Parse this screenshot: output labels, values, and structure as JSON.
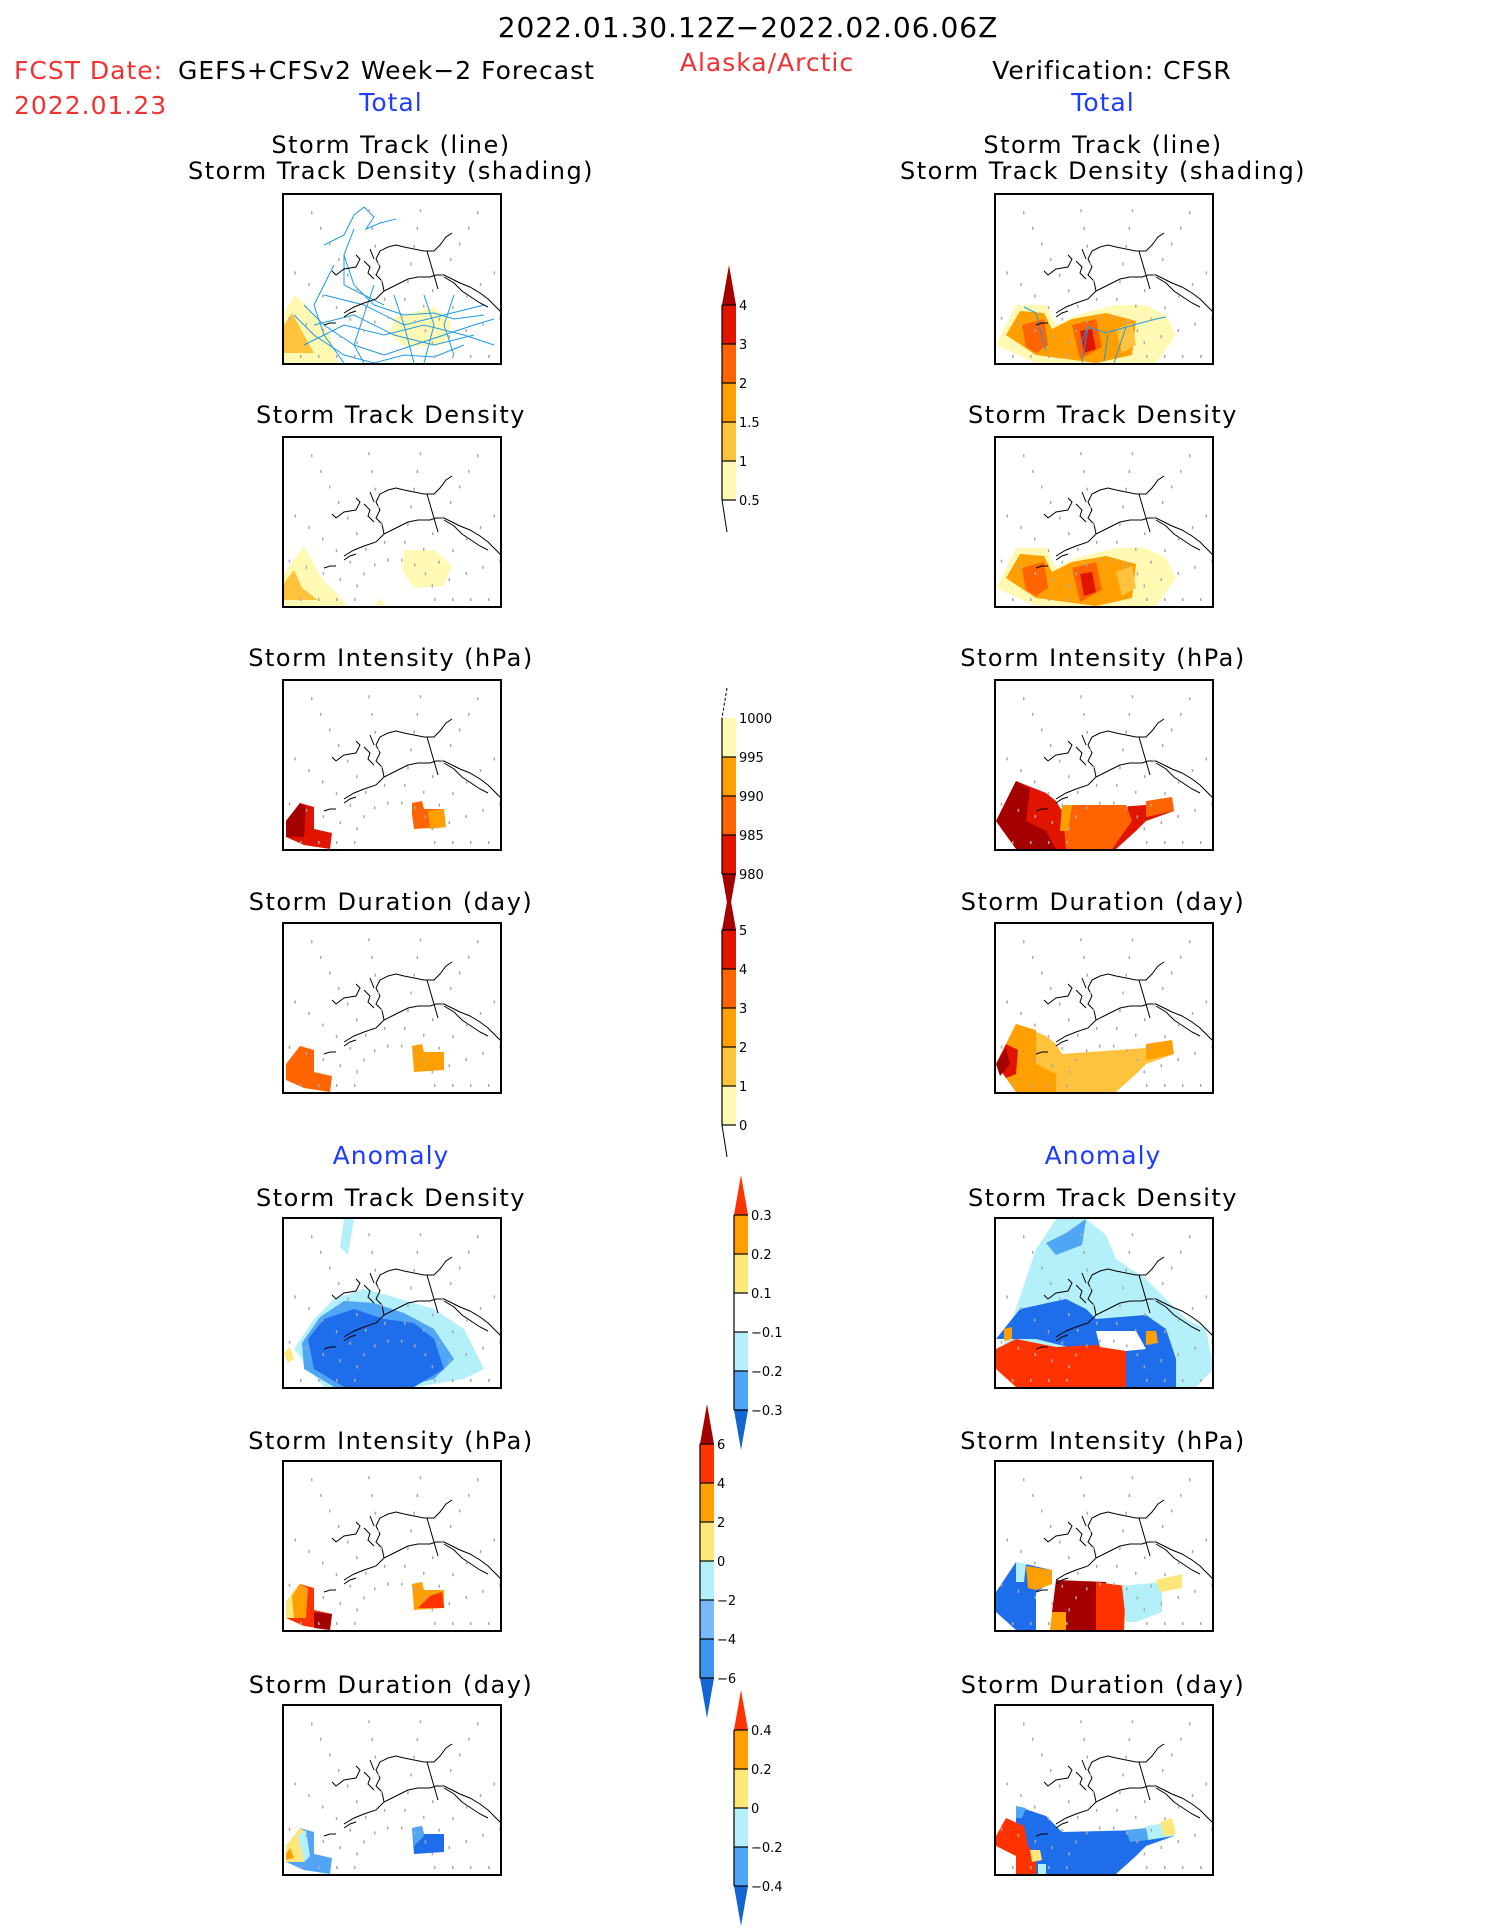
{
  "header": {
    "title": "2022.01.30.12Z−2022.02.06.06Z",
    "fcst_label": "FCST Date:",
    "fcst_model": "GEFS+CFSv2 Week−2 Forecast",
    "fcst_date": "2022.01.23",
    "region": "Alaska/Arctic",
    "verification": "Verification: CFSR"
  },
  "columns": {
    "left": {
      "total_label": "Total",
      "anomaly_label": "Anomaly"
    },
    "right": {
      "total_label": "Total",
      "anomaly_label": "Anomaly"
    }
  },
  "panel_titles": {
    "track_line": "Storm Track (line)",
    "track_shading": "Storm Track Density (shading)",
    "density": "Storm Track Density",
    "intensity": "Storm Intensity (hPa)",
    "duration": "Storm Duration (day)"
  },
  "colors": {
    "warm": [
      "#fff9b4",
      "#ffc23c",
      "#ff9f00",
      "#ff6400",
      "#e11400",
      "#a50000"
    ],
    "anom_pos": [
      "#ffe678",
      "#ff9f00",
      "#ff3200",
      "#a50000"
    ],
    "anom_neg": [
      "#b4f0fa",
      "#50a5f5",
      "#78b9fa",
      "#1e6eeb",
      "#1464d2"
    ],
    "track_line": "#1e9be6",
    "coast": "#000000"
  },
  "chart_data": [
    {
      "type": "heatmap",
      "name": "colorbar-track-density-total",
      "levels": [
        "0.5",
        "1",
        "1.5",
        "2",
        "3",
        "4"
      ],
      "colors": [
        "#fff9b4",
        "#ffc23c",
        "#ff9f00",
        "#ff6400",
        "#e11400",
        "#a50000"
      ],
      "extend": "max"
    },
    {
      "type": "heatmap",
      "name": "colorbar-intensity-total",
      "levels": [
        "1000",
        "995",
        "990",
        "985",
        "980"
      ],
      "colors": [
        "#fff9b4",
        "#ff9f00",
        "#ff6400",
        "#e11400",
        "#a50000"
      ],
      "extend": "min"
    },
    {
      "type": "heatmap",
      "name": "colorbar-duration-total",
      "levels": [
        "0",
        "1",
        "2",
        "3",
        "4",
        "5"
      ],
      "colors": [
        "#fff9b4",
        "#ffc23c",
        "#ff9f00",
        "#ff6400",
        "#e11400",
        "#a50000"
      ],
      "extend": "max"
    },
    {
      "type": "heatmap",
      "name": "colorbar-track-density-anomaly",
      "levels": [
        "0.3",
        "0.2",
        "0.1",
        "−0.1",
        "−0.2",
        "−0.3"
      ],
      "colors": [
        "#ff3200",
        "#ff9f00",
        "#ffe678",
        "#ffffff",
        "#b4f0fa",
        "#50a5f5",
        "#1464d2"
      ],
      "extend": "both"
    },
    {
      "type": "heatmap",
      "name": "colorbar-intensity-anomaly",
      "levels": [
        "6",
        "4",
        "2",
        "0",
        "−2",
        "−4",
        "−6"
      ],
      "colors": [
        "#a50000",
        "#ff3200",
        "#ff9f00",
        "#ffe678",
        "#b4f0fa",
        "#78b9fa",
        "#3c96f0",
        "#1464d2"
      ],
      "extend": "both"
    },
    {
      "type": "heatmap",
      "name": "colorbar-duration-anomaly",
      "levels": [
        "0.4",
        "0.2",
        "0",
        "−0.2",
        "−0.4"
      ],
      "colors": [
        "#ff3200",
        "#ff9f00",
        "#ffe678",
        "#b4f0fa",
        "#50a5f5",
        "#1464d2"
      ],
      "extend": "both"
    }
  ]
}
